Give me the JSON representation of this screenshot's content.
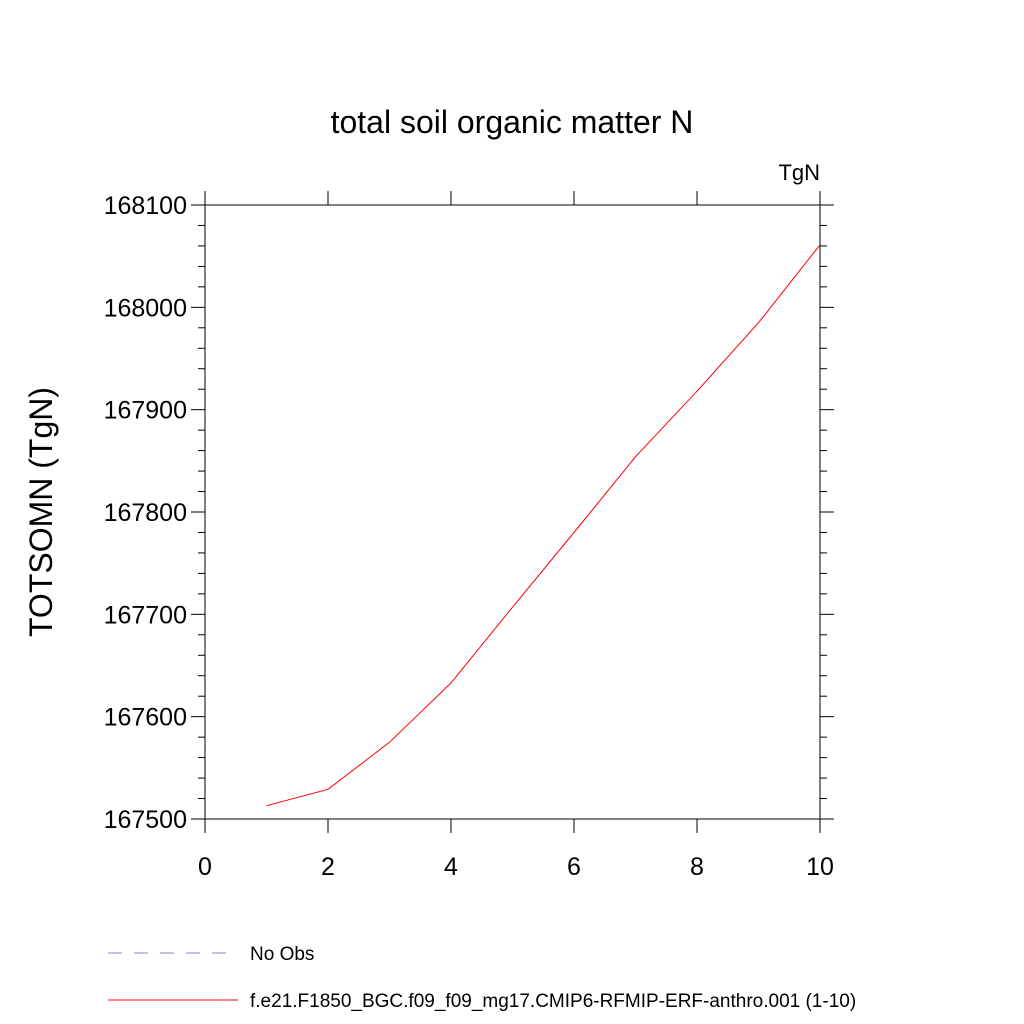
{
  "chart_data": {
    "type": "line",
    "title": "total soil organic matter N",
    "units_label": "TgN",
    "ylabel": "TOTSOMN  (TgN)",
    "xlabel": "",
    "xlim": [
      0,
      10
    ],
    "ylim": [
      167500,
      168100
    ],
    "x_ticks": [
      0,
      2,
      4,
      6,
      8,
      10
    ],
    "x_tick_labels": [
      "0",
      "2",
      "4",
      "6",
      "8",
      "10"
    ],
    "y_ticks": [
      167500,
      167600,
      167700,
      167800,
      167900,
      168000,
      168100
    ],
    "y_tick_labels": [
      "167500",
      "167600",
      "167700",
      "167800",
      "167900",
      "168000",
      "168100"
    ],
    "grid": false,
    "legend_position": "bottom",
    "series": [
      {
        "name": "No Obs",
        "color": "#8a80c8",
        "style": "dashed",
        "x": [],
        "y": []
      },
      {
        "name": "f.e21.F1850_BGC.f09_f09_mg17.CMIP6-RFMIP-ERF-anthro.001 (1-10)",
        "color": "#ff0000",
        "style": "solid",
        "x": [
          1,
          2,
          3,
          4,
          5,
          6,
          7,
          8,
          9,
          10
        ],
        "y": [
          167513,
          167529,
          167575,
          167633,
          167707,
          167780,
          167854,
          167918,
          167985,
          168061
        ]
      }
    ]
  }
}
